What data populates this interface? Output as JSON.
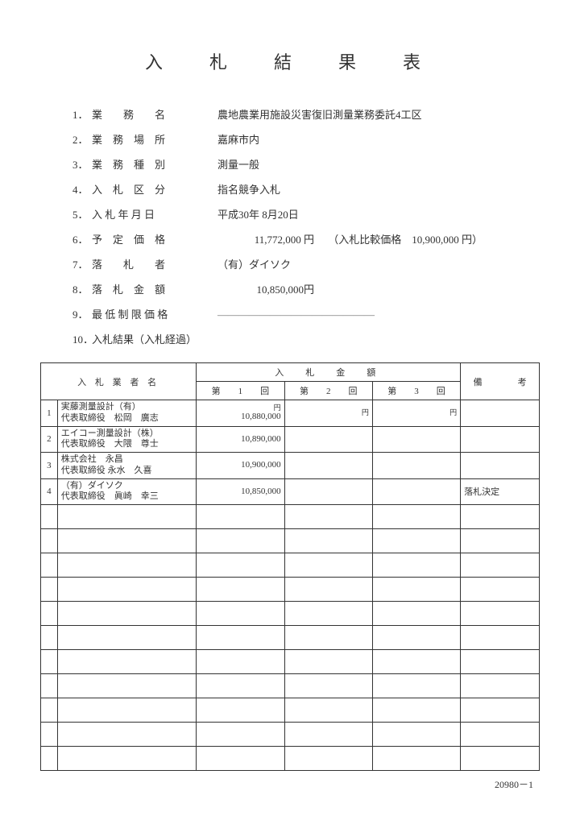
{
  "title": "入　札　結　果　表",
  "fields": {
    "f1": {
      "num": "1．",
      "label": "業　　務　　名",
      "value": "農地農業用施設災害復旧測量業務委託4工区"
    },
    "f2": {
      "num": "2．",
      "label": "業　務　場　所",
      "value": "嘉麻市内"
    },
    "f3": {
      "num": "3．",
      "label": "業　務　種　別",
      "value": "測量一般"
    },
    "f4": {
      "num": "4．",
      "label": "入　札　区　分",
      "value": "指名競争入札"
    },
    "f5": {
      "num": "5．",
      "label": "入 札 年 月 日",
      "value": "平成30年 8月20日"
    },
    "f6": {
      "num": "6．",
      "label": "予　定　価　格",
      "value": "11,772,000 円",
      "extra": "（入札比較価格　10,900,000 円）"
    },
    "f7": {
      "num": "7．",
      "label": "落　　札　　者",
      "value": "（有）ダイソク"
    },
    "f8": {
      "num": "8．",
      "label": "落　札　金　額",
      "value": "10,850,000円"
    },
    "f9": {
      "num": "9．",
      "label": "最 低 制 限 価 格",
      "value": "―――――――――――――――"
    },
    "f10": {
      "num": "10．",
      "label": "入札結果（入札経過）",
      "value": ""
    }
  },
  "table_headers": {
    "vendor": "入 札 業 者 名",
    "amount_group": "入　札　金　額",
    "round1": "第　　1　　回",
    "round2": "第　　2　　回",
    "round3": "第　　3　　回",
    "biko": "備　　　　考",
    "yen": "円"
  },
  "rows": [
    {
      "idx": "1",
      "line1": "実藤測量設計（有）",
      "line2": "代表取締役　松岡　廣志",
      "amt1": "10,880,000",
      "note": ""
    },
    {
      "idx": "2",
      "line1": "エイコー測量設計（株）",
      "line2": "代表取締役　大隈　尊士",
      "amt1": "10,890,000",
      "note": ""
    },
    {
      "idx": "3",
      "line1": "株式会社　永昌",
      "line2": "代表取締役 永水　久喜",
      "amt1": "10,900,000",
      "note": ""
    },
    {
      "idx": "4",
      "line1": "（有）ダイソク",
      "line2": "代表取締役　眞崎　幸三",
      "amt1": "10,850,000",
      "note": "落札決定"
    }
  ],
  "empty_row_count": 11,
  "footer": "20980－1"
}
